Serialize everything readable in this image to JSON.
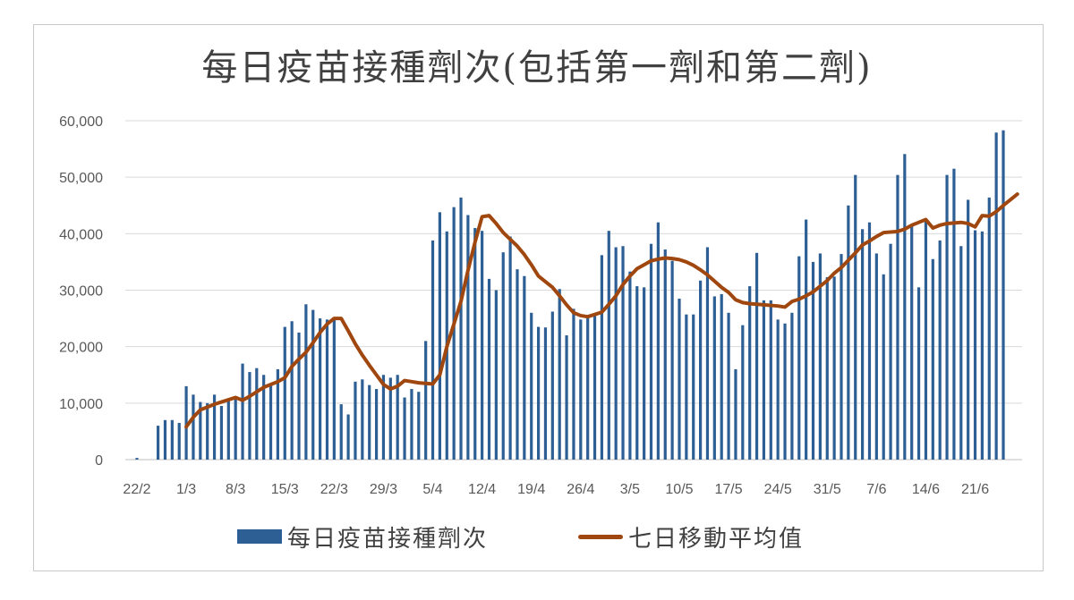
{
  "chart_data": {
    "type": "bar",
    "title": "每日疫苗接種劑次(包括第一劑和第二劑)",
    "xlabel": "",
    "ylabel": "",
    "ylim": [
      0,
      60000
    ],
    "yticks": [
      "0",
      "10,000",
      "20,000",
      "30,000",
      "40,000",
      "50,000",
      "60,000"
    ],
    "ytick_values": [
      0,
      10000,
      20000,
      30000,
      40000,
      50000,
      60000
    ],
    "x_tick_labels": [
      "22/2",
      "1/3",
      "8/3",
      "15/3",
      "22/3",
      "29/3",
      "5/4",
      "12/4",
      "19/4",
      "26/4",
      "3/5",
      "10/5",
      "17/5",
      "24/5",
      "31/5",
      "7/6",
      "14/6",
      "21/6"
    ],
    "x_tick_days": [
      0,
      7,
      14,
      21,
      28,
      35,
      42,
      49,
      56,
      63,
      70,
      77,
      84,
      91,
      98,
      105,
      112,
      119
    ],
    "grid": true,
    "legend_placement": "bottom",
    "series": [
      {
        "name": "每日疫苗接種劑次",
        "kind": "bar",
        "color": "#2d5f94",
        "start_day": 0,
        "values": [
          300,
          0,
          0,
          6000,
          7000,
          7000,
          6500,
          13000,
          11500,
          10200,
          10000,
          11500,
          9500,
          10500,
          10800,
          17000,
          15500,
          16200,
          15000,
          13500,
          16000,
          23500,
          24500,
          22500,
          27500,
          26500,
          25000,
          24800,
          25000,
          9800,
          8000,
          13800,
          14200,
          13200,
          12500,
          15000,
          14500,
          15000,
          11000,
          12500,
          12000,
          21000,
          38800,
          43800,
          40400,
          44700,
          46400,
          43300,
          41000,
          40500,
          32000,
          30000,
          36700,
          39500,
          33700,
          32500,
          26000,
          23500,
          23400,
          26200,
          30200,
          22000,
          26700,
          24800,
          25200,
          25500,
          36200,
          40500,
          37600,
          37800,
          33300,
          30700,
          30500,
          38200,
          42000,
          37200,
          35200,
          28500,
          25700,
          25700,
          31700,
          37600,
          28900,
          29300,
          26000,
          16000,
          23800,
          30700,
          36600,
          28200,
          28200,
          24800,
          24100,
          26000,
          36000,
          42500,
          35000,
          36500,
          32300,
          32400,
          36400,
          45000,
          50400,
          40800,
          42000,
          36500,
          32800,
          38200,
          50400,
          54100,
          41300,
          30500,
          42300,
          35500,
          38800,
          50400,
          51500,
          37800,
          46000,
          40600,
          40400,
          46400,
          57900,
          58300
        ]
      },
      {
        "name": "七日移動平均值",
        "kind": "line",
        "color": "#a0470f",
        "start_day": 7,
        "values": [
          5800,
          7500,
          8800,
          9300,
          9800,
          10200,
          10600,
          11000,
          10500,
          11200,
          12000,
          12800,
          13300,
          13800,
          14500,
          16500,
          17800,
          19000,
          20700,
          22500,
          24000,
          25000,
          25000,
          22800,
          20500,
          18500,
          16700,
          15000,
          13300,
          12500,
          13000,
          14000,
          13800,
          13600,
          13500,
          13400,
          15000,
          20000,
          24000,
          28000,
          33500,
          38500,
          43000,
          43200,
          41800,
          40200,
          39000,
          37800,
          36300,
          34500,
          32500,
          31500,
          30500,
          29000,
          27400,
          26000,
          25500,
          25300,
          25700,
          26100,
          27500,
          29000,
          31000,
          32500,
          33800,
          34500,
          35200,
          35500,
          35700,
          35600,
          35400,
          35000,
          34400,
          33600,
          32700,
          31600,
          30500,
          29600,
          28300,
          27800,
          27600,
          27500,
          27400,
          27300,
          27200,
          27000,
          28000,
          28400,
          29000,
          29700,
          30700,
          31700,
          33000,
          34000,
          35300,
          36600,
          38000,
          38700,
          39500,
          40200,
          40300,
          40400,
          40800,
          41500,
          42000,
          42500,
          41000,
          41500,
          41800,
          41900,
          42000,
          41800,
          41200,
          43200,
          43100,
          43900,
          45000,
          46000,
          47000
        ]
      }
    ]
  }
}
